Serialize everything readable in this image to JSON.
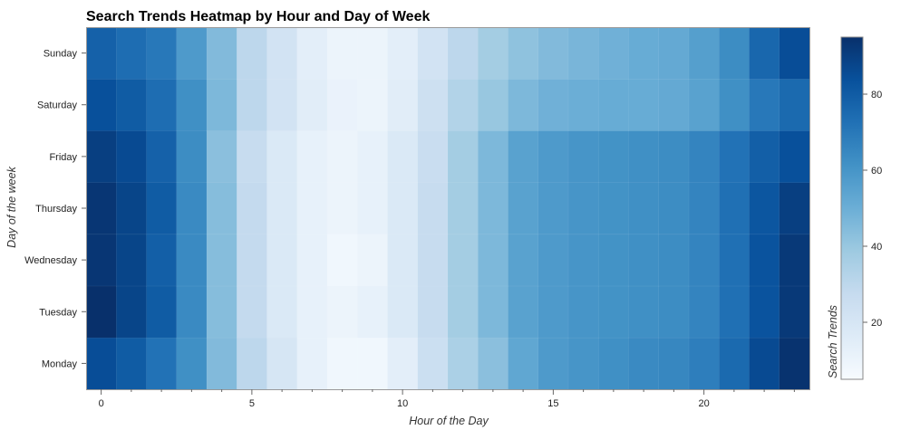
{
  "chart_data": {
    "type": "heatmap",
    "title": "Search Trends Heatmap by Hour and Day of Week",
    "xlabel": "Hour of the Day",
    "ylabel": "Day of the week",
    "colorbar_label": "Search Trends",
    "colormap": [
      "#f7fbff",
      "#deebf7",
      "#c6dbef",
      "#9ecae1",
      "#6baed6",
      "#4292c6",
      "#2171b5",
      "#08519c",
      "#08306b"
    ],
    "color_range": [
      5,
      95
    ],
    "colorbar_ticks": [
      20,
      40,
      60,
      80
    ],
    "x": [
      0,
      1,
      2,
      3,
      4,
      5,
      6,
      7,
      8,
      9,
      10,
      11,
      12,
      13,
      14,
      15,
      16,
      17,
      18,
      19,
      20,
      21,
      22,
      23
    ],
    "x_ticks": [
      0,
      5,
      10,
      15,
      20
    ],
    "xlim": [
      -0.5,
      23.5
    ],
    "y": [
      "Monday",
      "Tuesday",
      "Wednesday",
      "Thursday",
      "Friday",
      "Saturday",
      "Sunday"
    ],
    "values": [
      [
        85,
        80,
        72,
        62,
        45,
        30,
        20,
        12,
        8,
        8,
        14,
        25,
        35,
        43,
        53,
        58,
        60,
        62,
        64,
        65,
        68,
        75,
        86,
        94
      ],
      [
        95,
        88,
        80,
        64,
        44,
        28,
        18,
        12,
        10,
        12,
        18,
        27,
        37,
        46,
        55,
        58,
        60,
        61,
        62,
        63,
        66,
        73,
        83,
        92
      ],
      [
        93,
        88,
        79,
        64,
        44,
        28,
        18,
        12,
        8,
        10,
        18,
        27,
        37,
        46,
        55,
        58,
        60,
        61,
        62,
        63,
        66,
        73,
        83,
        92
      ],
      [
        93,
        88,
        80,
        64,
        44,
        28,
        18,
        12,
        10,
        12,
        18,
        27,
        37,
        46,
        55,
        58,
        60,
        61,
        62,
        63,
        66,
        73,
        82,
        90
      ],
      [
        90,
        86,
        78,
        63,
        43,
        27,
        18,
        12,
        10,
        12,
        18,
        26,
        37,
        46,
        55,
        58,
        60,
        61,
        62,
        63,
        66,
        72,
        79,
        84
      ],
      [
        84,
        80,
        74,
        62,
        46,
        30,
        22,
        15,
        11,
        10,
        15,
        24,
        33,
        40,
        46,
        49,
        50,
        51,
        51,
        52,
        55,
        62,
        70,
        75
      ],
      [
        78,
        74,
        70,
        58,
        45,
        30,
        22,
        14,
        10,
        10,
        14,
        22,
        30,
        37,
        42,
        45,
        47,
        49,
        51,
        52,
        56,
        63,
        76,
        85
      ]
    ]
  }
}
